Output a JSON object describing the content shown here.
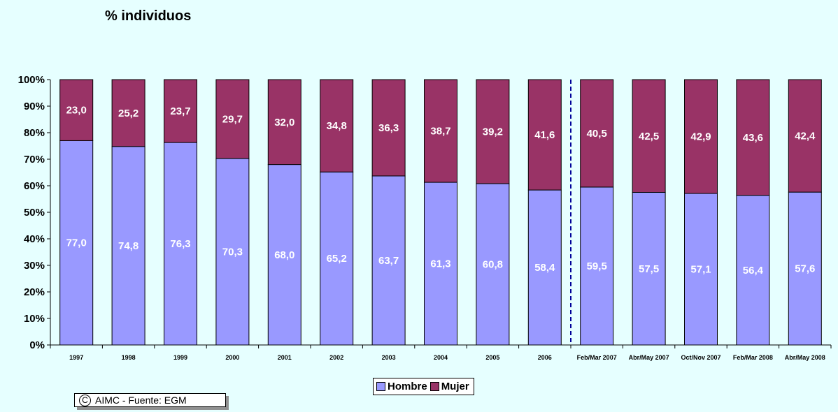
{
  "chart_data": {
    "type": "bar",
    "stacked": true,
    "percent_stacked": true,
    "title": "% individuos",
    "categories": [
      "1997",
      "1998",
      "1999",
      "2000",
      "2001",
      "2002",
      "2003",
      "2004",
      "2005",
      "2006",
      "Feb/Mar 2007",
      "Abr/May 2007",
      "Oct/Nov 2007",
      "Feb/Mar 2008",
      "Abr/May 2008"
    ],
    "series": [
      {
        "name": "Hombre",
        "color": "#9999ff",
        "values": [
          77.0,
          74.8,
          76.3,
          70.3,
          68.0,
          65.2,
          63.7,
          61.3,
          60.8,
          58.4,
          59.5,
          57.5,
          57.1,
          56.4,
          57.6
        ]
      },
      {
        "name": "Mujer",
        "color": "#993366",
        "values": [
          23.0,
          25.2,
          23.7,
          29.7,
          32.0,
          34.8,
          36.3,
          38.7,
          39.2,
          41.6,
          40.5,
          42.5,
          42.9,
          43.6,
          42.4
        ]
      }
    ],
    "value_labels": {
      "Hombre": [
        "77,0",
        "74,8",
        "76,3",
        "70,3",
        "68,0",
        "65,2",
        "63,7",
        "61,3",
        "60,8",
        "58,4",
        "59,5",
        "57,5",
        "57,1",
        "56,4",
        "57,6"
      ],
      "Mujer": [
        "23,0",
        "25,2",
        "23,7",
        "29,7",
        "32,0",
        "34,8",
        "36,3",
        "38,7",
        "39,2",
        "41,6",
        "40,5",
        "42,5",
        "42,9",
        "43,6",
        "42,4"
      ]
    },
    "ylim": [
      0,
      100
    ],
    "yticks": [
      0,
      10,
      20,
      30,
      40,
      50,
      60,
      70,
      80,
      90,
      100
    ],
    "ytick_labels": [
      "0%",
      "10%",
      "20%",
      "30%",
      "40%",
      "50%",
      "60%",
      "70%",
      "80%",
      "90%",
      "100%"
    ],
    "divider_after_category": "2006",
    "divider_color": "#000099",
    "grid": false,
    "legend_position": "bottom"
  },
  "copyright": {
    "symbol": "C",
    "text": "AIMC - Fuente: EGM"
  }
}
